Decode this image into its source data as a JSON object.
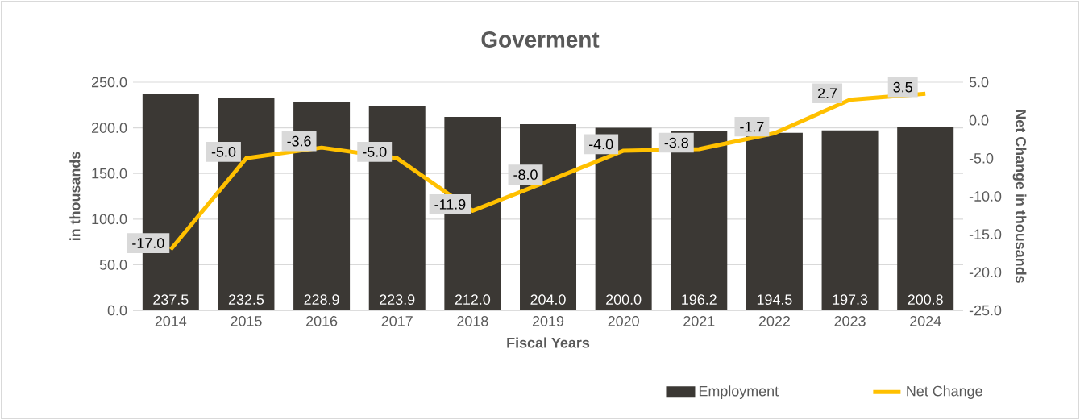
{
  "chart_data": {
    "type": "bar",
    "title": "Goverment",
    "xlabel": "Fiscal Years",
    "ylabel": "in thousands",
    "y2label": "Net Change in thousands",
    "categories": [
      "2014",
      "2015",
      "2016",
      "2017",
      "2018",
      "2019",
      "2020",
      "2021",
      "2022",
      "2023",
      "2024"
    ],
    "series": [
      {
        "name": "Employment",
        "color": "#3b3834",
        "values": [
          237.5,
          232.5,
          228.9,
          223.9,
          212.0,
          204.0,
          200.0,
          196.2,
          194.5,
          197.3,
          200.8
        ],
        "value_labels": [
          "237.5",
          "232.5",
          "228.9",
          "223.9",
          "212.0",
          "204.0",
          "200.0",
          "196.2",
          "194.5",
          "197.3",
          "200.8"
        ]
      },
      {
        "name": "Net Change",
        "type": "line",
        "axis": "y2",
        "color": "#ffc000",
        "values": [
          -17.0,
          -5.0,
          -3.6,
          -5.0,
          -11.9,
          -8.0,
          -4.0,
          -3.8,
          -1.7,
          2.7,
          3.5
        ],
        "value_labels": [
          "-17.0",
          "-5.0",
          "-3.6",
          "-5.0",
          "-11.9",
          "-8.0",
          "-4.0",
          "-3.8",
          "-1.7",
          "2.7",
          "3.5"
        ]
      }
    ],
    "ylim": [
      0,
      250
    ],
    "yticks": [
      {
        "value": 0,
        "label": "0.0"
      },
      {
        "value": 50,
        "label": "50.0"
      },
      {
        "value": 100,
        "label": "100.0"
      },
      {
        "value": 150,
        "label": "150.0"
      },
      {
        "value": 200,
        "label": "200.0"
      },
      {
        "value": 250,
        "label": "250.0"
      }
    ],
    "y2lim": [
      -25,
      5
    ],
    "y2ticks": [
      {
        "value": -25,
        "label": "-25.0"
      },
      {
        "value": -20,
        "label": "-20.0"
      },
      {
        "value": -15,
        "label": "-15.0"
      },
      {
        "value": -10,
        "label": "-10.0"
      },
      {
        "value": -5,
        "label": "-5.0"
      },
      {
        "value": 0,
        "label": "0.0"
      },
      {
        "value": 5,
        "label": "5.0"
      }
    ],
    "grid": "y",
    "legend": "bottom right"
  }
}
